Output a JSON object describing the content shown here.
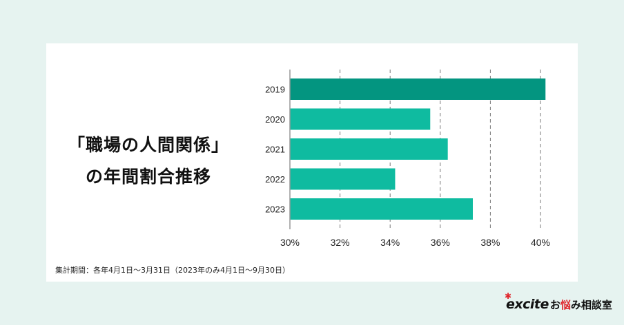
{
  "title_lines": [
    "「職場の人間関係」",
    "の年間割合推移"
  ],
  "note": "集計期間：各年4月1日〜3月31日（2023年のみ4月1日〜9月30日）",
  "logo": {
    "mark": "excite",
    "text_pre": "お",
    "text_red": "悩",
    "text_post": "み相談室"
  },
  "colors": {
    "bar_highlight": "#039580",
    "bar": "#0fbba0",
    "axis": "#999999",
    "grid": "#777777"
  },
  "chart_data": {
    "type": "bar",
    "orientation": "horizontal",
    "categories": [
      "2019",
      "2020",
      "2021",
      "2022",
      "2023"
    ],
    "values": [
      40.2,
      35.6,
      36.3,
      34.2,
      37.3
    ],
    "unit": "%",
    "xlim": [
      30,
      40
    ],
    "xticks": [
      30,
      32,
      34,
      36,
      38,
      40
    ],
    "xtick_labels": [
      "30%",
      "32%",
      "34%",
      "36%",
      "38%",
      "40%"
    ],
    "grid": "vertical dashed",
    "highlight_category": "2019"
  }
}
